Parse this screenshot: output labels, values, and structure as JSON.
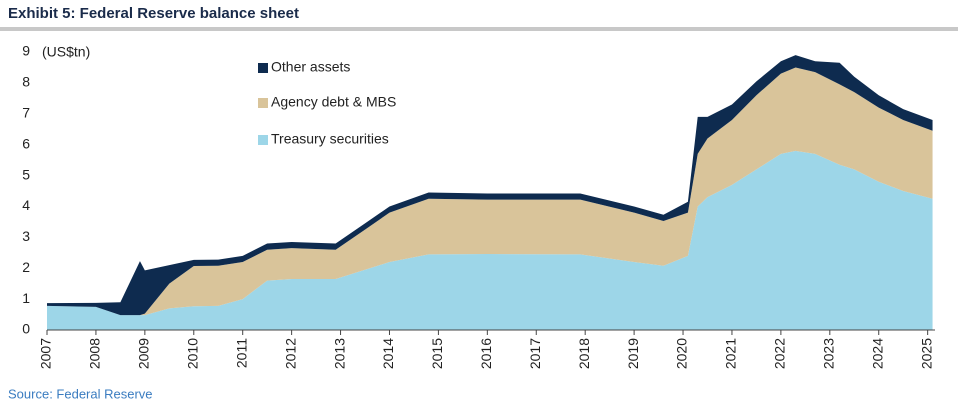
{
  "chart_data": {
    "type": "stacked-area",
    "title": "Exhibit 5: Federal Reserve balance sheet",
    "y_label": "(US$tn)",
    "source": "Source: Federal Reserve",
    "x": [
      2007.0,
      2008.0,
      2008.5,
      2008.9,
      2009.0,
      2009.5,
      2010.0,
      2010.5,
      2011.0,
      2011.5,
      2012.0,
      2012.9,
      2013.5,
      2014.0,
      2014.8,
      2016.0,
      2017.9,
      2019.0,
      2019.6,
      2020.1,
      2020.3,
      2020.5,
      2021.0,
      2021.5,
      2022.0,
      2022.3,
      2022.7,
      2023.2,
      2023.5,
      2024.0,
      2024.5,
      2025.1
    ],
    "series": [
      {
        "name": "Treasury securities",
        "color": "#9dd6e8",
        "values": [
          0.78,
          0.75,
          0.48,
          0.48,
          0.48,
          0.7,
          0.77,
          0.78,
          1.0,
          1.6,
          1.65,
          1.65,
          1.95,
          2.2,
          2.45,
          2.46,
          2.45,
          2.2,
          2.08,
          2.4,
          4.0,
          4.3,
          4.7,
          5.2,
          5.7,
          5.8,
          5.7,
          5.35,
          5.2,
          4.8,
          4.5,
          4.25
        ]
      },
      {
        "name": "Agency debt & MBS",
        "color": "#d9c49a",
        "values": [
          0,
          0,
          0,
          0,
          0.05,
          0.8,
          1.3,
          1.3,
          1.2,
          1.0,
          1.0,
          0.95,
          1.3,
          1.6,
          1.8,
          1.76,
          1.77,
          1.6,
          1.45,
          1.4,
          1.7,
          1.9,
          2.1,
          2.4,
          2.6,
          2.7,
          2.65,
          2.6,
          2.5,
          2.4,
          2.3,
          2.2
        ]
      },
      {
        "name": "Other assets",
        "color": "#0e2b4f",
        "values": [
          0.09,
          0.13,
          0.42,
          1.75,
          1.4,
          0.6,
          0.2,
          0.2,
          0.2,
          0.2,
          0.2,
          0.2,
          0.2,
          0.2,
          0.2,
          0.2,
          0.2,
          0.2,
          0.2,
          0.35,
          1.2,
          0.7,
          0.5,
          0.45,
          0.4,
          0.4,
          0.35,
          0.7,
          0.5,
          0.4,
          0.35,
          0.35
        ]
      }
    ],
    "xlim": [
      2007,
      2025.15
    ],
    "xticks": [
      2007,
      2008,
      2009,
      2010,
      2011,
      2012,
      2013,
      2014,
      2015,
      2016,
      2017,
      2018,
      2019,
      2020,
      2021,
      2022,
      2023,
      2024,
      2025
    ],
    "ylim": [
      0,
      9
    ],
    "yticks": [
      0,
      1,
      2,
      3,
      4,
      5,
      6,
      7,
      8,
      9
    ],
    "grid": false
  }
}
